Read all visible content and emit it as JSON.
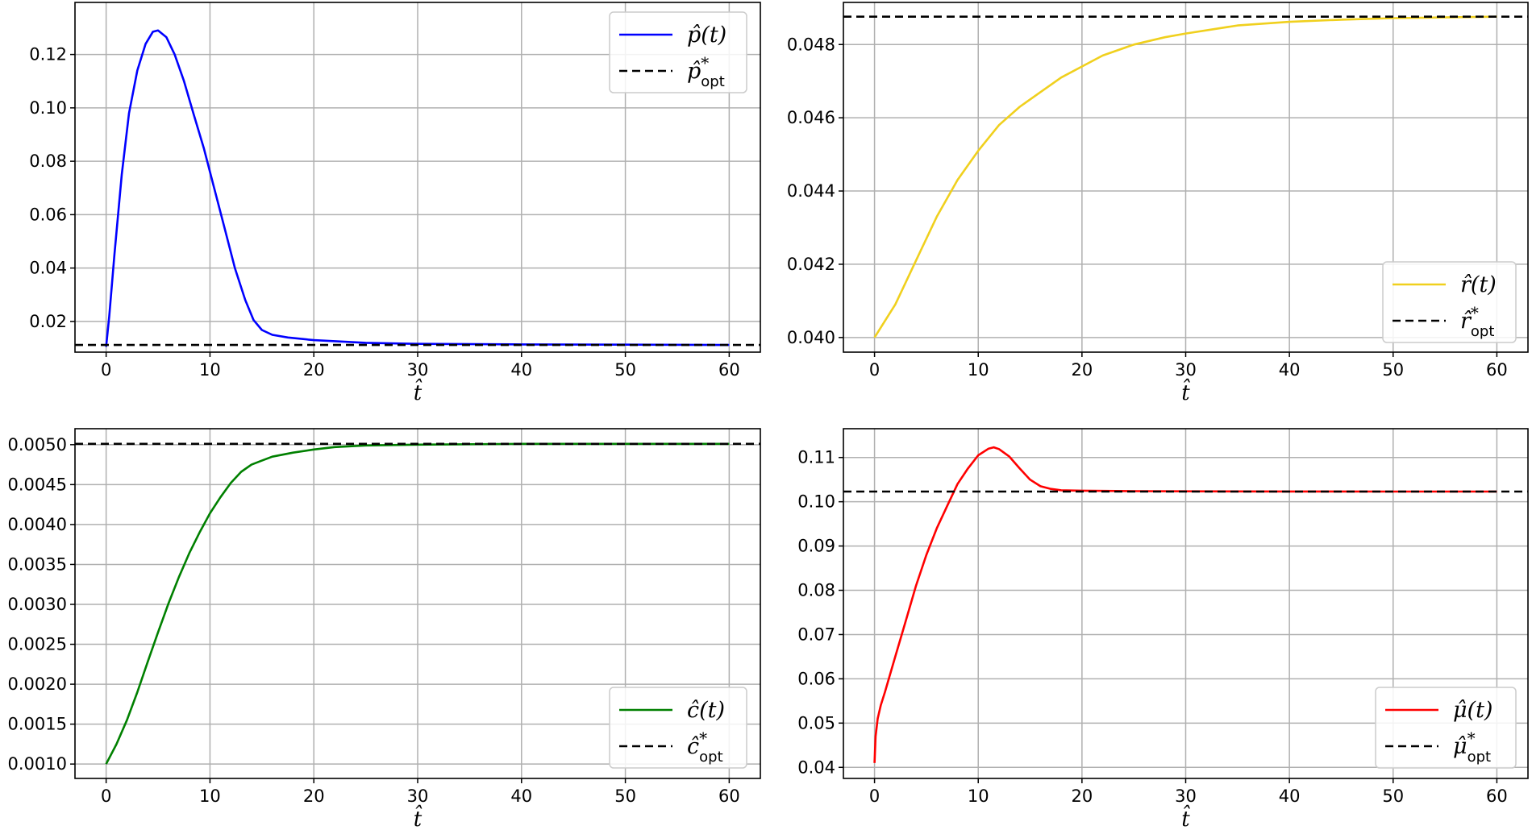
{
  "chart_data": [
    {
      "type": "line",
      "xlabel": "t̂",
      "xlim": [
        -3,
        63
      ],
      "ylim": [
        0.0085,
        0.1395
      ],
      "xticks": [
        0,
        10,
        20,
        30,
        40,
        50,
        60
      ],
      "yticks": [
        0.02,
        0.04,
        0.06,
        0.08,
        0.1,
        0.12
      ],
      "ytick_labels": [
        "0.02",
        "0.04",
        "0.06",
        "0.08",
        "0.10",
        "0.12"
      ],
      "grid": true,
      "legend_position": "top-right",
      "series": [
        {
          "name": "p̂(t)",
          "color": "#0000ff",
          "style": "solid",
          "x": [
            0,
            0.3,
            0.8,
            1.5,
            2.2,
            3.0,
            3.8,
            4.5,
            5.0,
            5.8,
            6.6,
            7.5,
            8.4,
            9.4,
            10.4,
            11.4,
            12.4,
            13.4,
            14.2,
            15.0,
            16.0,
            17.5,
            20,
            25,
            30,
            40,
            50,
            60
          ],
          "y": [
            0.0105,
            0.022,
            0.045,
            0.075,
            0.098,
            0.114,
            0.124,
            0.1285,
            0.129,
            0.1265,
            0.12,
            0.11,
            0.098,
            0.085,
            0.07,
            0.055,
            0.04,
            0.028,
            0.0205,
            0.0168,
            0.015,
            0.014,
            0.013,
            0.012,
            0.0116,
            0.0114,
            0.0113,
            0.0112
          ]
        },
        {
          "name": "p̂*opt",
          "color": "#000000",
          "style": "dashed",
          "x": [
            -3,
            63
          ],
          "y": [
            0.0112,
            0.0112
          ]
        }
      ]
    },
    {
      "type": "line",
      "xlabel": "t̂",
      "xlim": [
        -3,
        63
      ],
      "ylim": [
        0.0396,
        0.04915
      ],
      "xticks": [
        0,
        10,
        20,
        30,
        40,
        50,
        60
      ],
      "yticks": [
        0.04,
        0.042,
        0.044,
        0.046,
        0.048
      ],
      "ytick_labels": [
        "0.040",
        "0.042",
        "0.044",
        "0.046",
        "0.048"
      ],
      "grid": true,
      "legend_position": "lower-right",
      "series": [
        {
          "name": "r̂(t)",
          "color": "#f0d01e",
          "style": "solid",
          "x": [
            0,
            2,
            4,
            6,
            8,
            10,
            12,
            14,
            16,
            18,
            20,
            22,
            25,
            28,
            30,
            35,
            40,
            45,
            50,
            55,
            60
          ],
          "y": [
            0.04,
            0.0409,
            0.0421,
            0.0433,
            0.0443,
            0.0451,
            0.0458,
            0.0463,
            0.0467,
            0.0471,
            0.0474,
            0.0477,
            0.048,
            0.0482,
            0.0483,
            0.04852,
            0.04862,
            0.04868,
            0.04872,
            0.04874,
            0.04876
          ]
        },
        {
          "name": "r̂*opt",
          "color": "#000000",
          "style": "dashed",
          "x": [
            -3,
            63
          ],
          "y": [
            0.04876,
            0.04876
          ]
        }
      ]
    },
    {
      "type": "line",
      "xlabel": "t̂",
      "xlim": [
        -3,
        63
      ],
      "ylim": [
        0.00082,
        0.0052
      ],
      "xticks": [
        0,
        10,
        20,
        30,
        40,
        50,
        60
      ],
      "yticks": [
        0.001,
        0.0015,
        0.002,
        0.0025,
        0.003,
        0.0035,
        0.004,
        0.0045,
        0.005
      ],
      "ytick_labels": [
        "0.0010",
        "0.0015",
        "0.0020",
        "0.0025",
        "0.0030",
        "0.0035",
        "0.0040",
        "0.0045",
        "0.0050"
      ],
      "grid": true,
      "legend_position": "lower-right",
      "series": [
        {
          "name": "ĉ(t)",
          "color": "#008000",
          "style": "solid",
          "x": [
            0,
            1,
            2,
            3,
            4,
            5,
            6,
            7,
            8,
            9,
            10,
            11,
            12,
            13,
            14,
            15,
            16,
            18,
            20,
            22,
            25,
            30,
            40,
            50,
            60
          ],
          "y": [
            0.001,
            0.00125,
            0.00155,
            0.0019,
            0.00228,
            0.00265,
            0.00301,
            0.00334,
            0.00364,
            0.0039,
            0.00414,
            0.00434,
            0.00452,
            0.00466,
            0.00475,
            0.0048,
            0.00485,
            0.0049,
            0.00494,
            0.00497,
            0.00499,
            0.005,
            0.00501,
            0.00501,
            0.00501
          ]
        },
        {
          "name": "ĉ*opt",
          "color": "#000000",
          "style": "dashed",
          "x": [
            -3,
            63
          ],
          "y": [
            0.00501,
            0.00501
          ]
        }
      ]
    },
    {
      "type": "line",
      "xlabel": "t̂",
      "xlim": [
        -3,
        63
      ],
      "ylim": [
        0.0375,
        0.1165
      ],
      "xticks": [
        0,
        10,
        20,
        30,
        40,
        50,
        60
      ],
      "yticks": [
        0.04,
        0.05,
        0.06,
        0.07,
        0.08,
        0.09,
        0.1,
        0.11
      ],
      "ytick_labels": [
        "0.04",
        "0.05",
        "0.06",
        "0.07",
        "0.08",
        "0.09",
        "0.10",
        "0.11"
      ],
      "grid": true,
      "legend_position": "lower-right",
      "series": [
        {
          "name": "μ̂(t)",
          "color": "#ff0000",
          "style": "solid",
          "x": [
            0,
            0.1,
            0.3,
            0.6,
            1,
            1.5,
            2,
            3,
            4,
            5,
            6,
            7,
            8,
            9,
            10,
            11,
            11.5,
            12,
            13,
            14,
            15,
            16,
            17,
            18,
            20,
            25,
            30,
            40,
            50,
            60
          ],
          "y": [
            0.041,
            0.047,
            0.051,
            0.054,
            0.057,
            0.061,
            0.065,
            0.073,
            0.081,
            0.088,
            0.094,
            0.099,
            0.104,
            0.1075,
            0.1105,
            0.112,
            0.1123,
            0.1119,
            0.1102,
            0.1075,
            0.105,
            0.1035,
            0.1029,
            0.1026,
            0.1025,
            0.1024,
            0.10235,
            0.10232,
            0.10231,
            0.1023
          ]
        },
        {
          "name": "μ̂*opt",
          "color": "#000000",
          "style": "dashed",
          "x": [
            -3,
            63
          ],
          "y": [
            0.1023,
            0.1023
          ]
        }
      ]
    }
  ],
  "legends": [
    {
      "items": [
        {
          "text": "p̂(t)",
          "sub": "",
          "sup": ""
        },
        {
          "text": "p̂",
          "sub": "opt",
          "sup": "*"
        }
      ]
    },
    {
      "items": [
        {
          "text": "r̂(t)",
          "sub": "",
          "sup": ""
        },
        {
          "text": "r̂",
          "sub": "opt",
          "sup": "*"
        }
      ]
    },
    {
      "items": [
        {
          "text": "ĉ(t)",
          "sub": "",
          "sup": ""
        },
        {
          "text": "ĉ",
          "sub": "opt",
          "sup": "*"
        }
      ]
    },
    {
      "items": [
        {
          "text": "μ̂(t)",
          "sub": "",
          "sup": ""
        },
        {
          "text": "μ̂",
          "sub": "opt",
          "sup": "*"
        }
      ]
    }
  ]
}
